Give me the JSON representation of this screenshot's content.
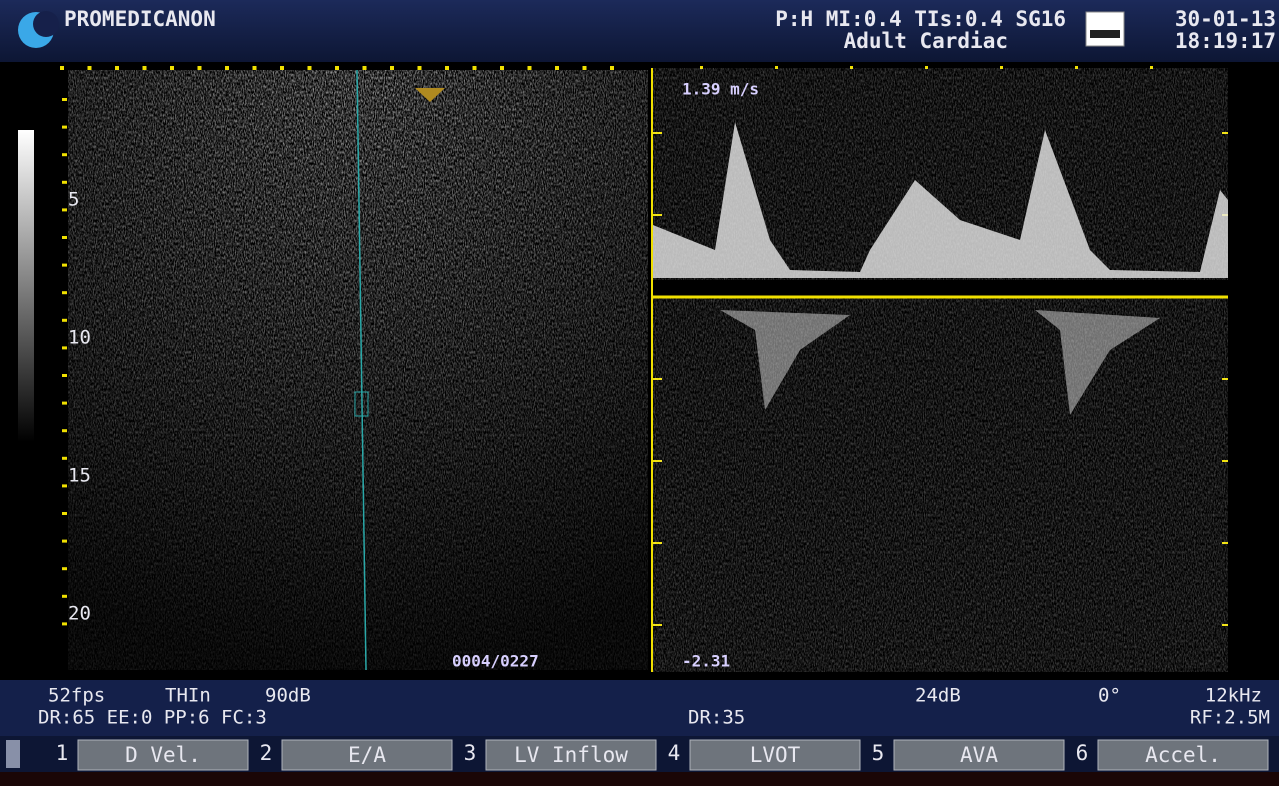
{
  "header": {
    "brand": "PROMEDICANON",
    "params": "P:H MI:0.4 TIs:0.4 SG16",
    "preset": "Adult Cardiac",
    "date": "30-01-13",
    "time": "18:19:17"
  },
  "image": {
    "depth_labels": [
      "5",
      "10",
      "15",
      "20"
    ],
    "frame_counter": "0004/0227"
  },
  "doppler": {
    "scale_top": "1.39 m/s",
    "scale_bottom": "-2.31"
  },
  "status": {
    "line1": [
      "52fps",
      "THIn",
      "90dB"
    ],
    "line2": "DR:65 EE:0 PP:6 FC:3",
    "center": "DR:35",
    "gain": "24dB",
    "angle": "0°",
    "prf": "12kHz",
    "rf": "RF:2.5M"
  },
  "softkeys": [
    {
      "number": "1",
      "label": "D Vel."
    },
    {
      "number": "2",
      "label": "E/A"
    },
    {
      "number": "3",
      "label": "LV Inflow"
    },
    {
      "number": "4",
      "label": "LVOT"
    },
    {
      "number": "5",
      "label": "AVA"
    },
    {
      "number": "6",
      "label": "Accel."
    }
  ]
}
